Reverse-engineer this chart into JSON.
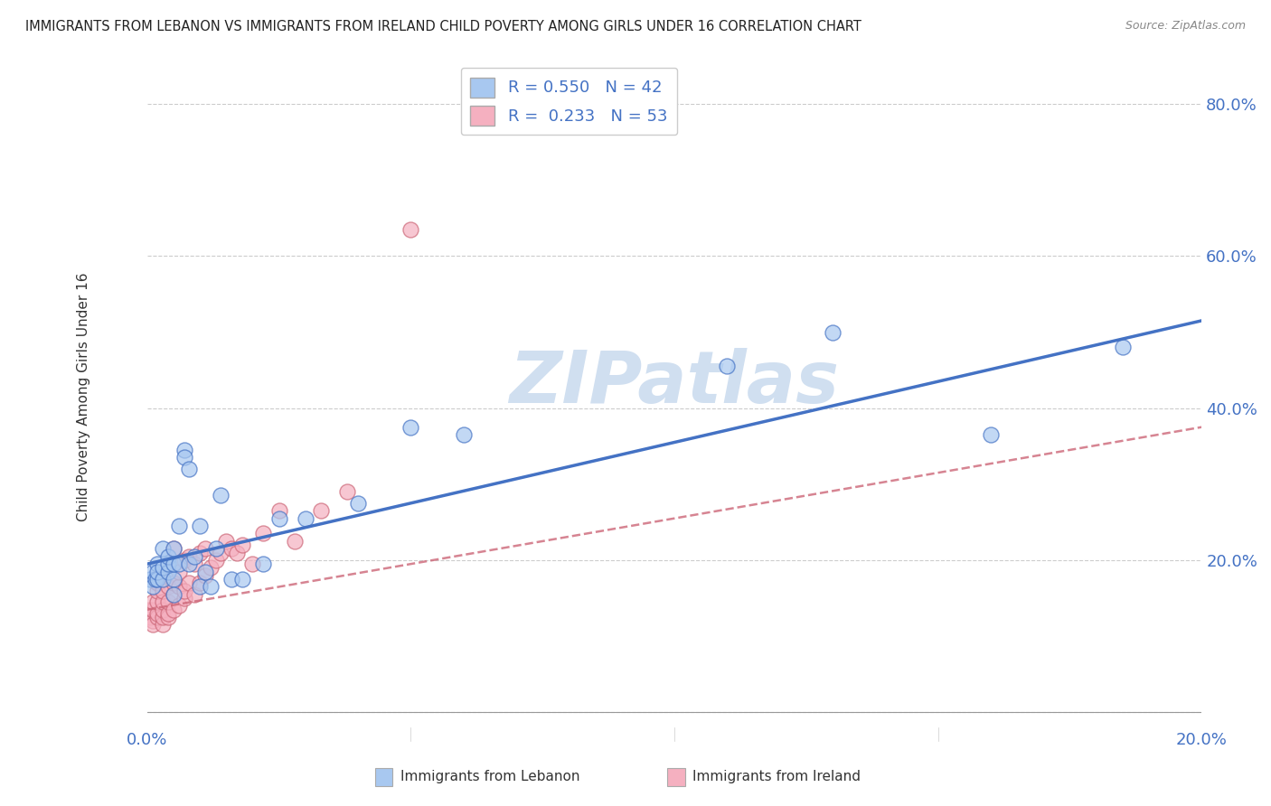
{
  "title": "IMMIGRANTS FROM LEBANON VS IMMIGRANTS FROM IRELAND CHILD POVERTY AMONG GIRLS UNDER 16 CORRELATION CHART",
  "source": "Source: ZipAtlas.com",
  "ylabel": "Child Poverty Among Girls Under 16",
  "xlim": [
    0.0,
    0.2
  ],
  "ylim": [
    -0.02,
    0.85
  ],
  "x_ticks": [
    0.0,
    0.05,
    0.1,
    0.15,
    0.2
  ],
  "x_tick_labels": [
    "0.0%",
    "",
    "",
    "",
    "20.0%"
  ],
  "y_ticks": [
    0.0,
    0.2,
    0.4,
    0.6,
    0.8
  ],
  "y_tick_labels": [
    "",
    "20.0%",
    "40.0%",
    "60.0%",
    "80.0%"
  ],
  "R_lebanon": 0.55,
  "N_lebanon": 42,
  "R_ireland": 0.233,
  "N_ireland": 53,
  "color_lebanon": "#a8c8f0",
  "color_ireland": "#f5b0c0",
  "color_line_lebanon": "#4472c4",
  "color_line_ireland": "#cc6677",
  "lebanon_x": [
    0.0005,
    0.001,
    0.001,
    0.0015,
    0.002,
    0.002,
    0.002,
    0.003,
    0.003,
    0.003,
    0.004,
    0.004,
    0.004,
    0.005,
    0.005,
    0.005,
    0.005,
    0.006,
    0.006,
    0.007,
    0.007,
    0.008,
    0.008,
    0.009,
    0.01,
    0.01,
    0.011,
    0.012,
    0.013,
    0.014,
    0.016,
    0.018,
    0.022,
    0.025,
    0.03,
    0.04,
    0.05,
    0.06,
    0.11,
    0.13,
    0.16,
    0.185
  ],
  "lebanon_y": [
    0.175,
    0.165,
    0.185,
    0.175,
    0.195,
    0.175,
    0.185,
    0.175,
    0.19,
    0.215,
    0.185,
    0.195,
    0.205,
    0.175,
    0.195,
    0.215,
    0.155,
    0.195,
    0.245,
    0.345,
    0.335,
    0.32,
    0.195,
    0.205,
    0.165,
    0.245,
    0.185,
    0.165,
    0.215,
    0.285,
    0.175,
    0.175,
    0.195,
    0.255,
    0.255,
    0.275,
    0.375,
    0.365,
    0.455,
    0.5,
    0.365,
    0.48
  ],
  "ireland_x": [
    0.0003,
    0.0005,
    0.001,
    0.001,
    0.001,
    0.001,
    0.002,
    0.002,
    0.002,
    0.002,
    0.002,
    0.003,
    0.003,
    0.003,
    0.003,
    0.003,
    0.003,
    0.004,
    0.004,
    0.004,
    0.004,
    0.005,
    0.005,
    0.005,
    0.005,
    0.006,
    0.006,
    0.006,
    0.007,
    0.007,
    0.007,
    0.008,
    0.008,
    0.009,
    0.009,
    0.01,
    0.01,
    0.011,
    0.011,
    0.012,
    0.013,
    0.014,
    0.015,
    0.016,
    0.017,
    0.018,
    0.02,
    0.022,
    0.025,
    0.028,
    0.033,
    0.038,
    0.05
  ],
  "ireland_y": [
    0.135,
    0.125,
    0.12,
    0.115,
    0.135,
    0.145,
    0.125,
    0.13,
    0.145,
    0.16,
    0.17,
    0.115,
    0.125,
    0.135,
    0.145,
    0.16,
    0.175,
    0.125,
    0.13,
    0.145,
    0.165,
    0.135,
    0.155,
    0.17,
    0.215,
    0.14,
    0.165,
    0.185,
    0.15,
    0.16,
    0.2,
    0.17,
    0.205,
    0.155,
    0.195,
    0.17,
    0.21,
    0.18,
    0.215,
    0.19,
    0.2,
    0.21,
    0.225,
    0.215,
    0.21,
    0.22,
    0.195,
    0.235,
    0.265,
    0.225,
    0.265,
    0.29,
    0.635
  ],
  "watermark_text": "ZIPatlas",
  "watermark_color": "#d0dff0",
  "background_color": "#ffffff",
  "line_lebanon_intercept": 0.195,
  "line_lebanon_slope": 1.6,
  "line_ireland_intercept": 0.135,
  "line_ireland_slope": 1.2
}
